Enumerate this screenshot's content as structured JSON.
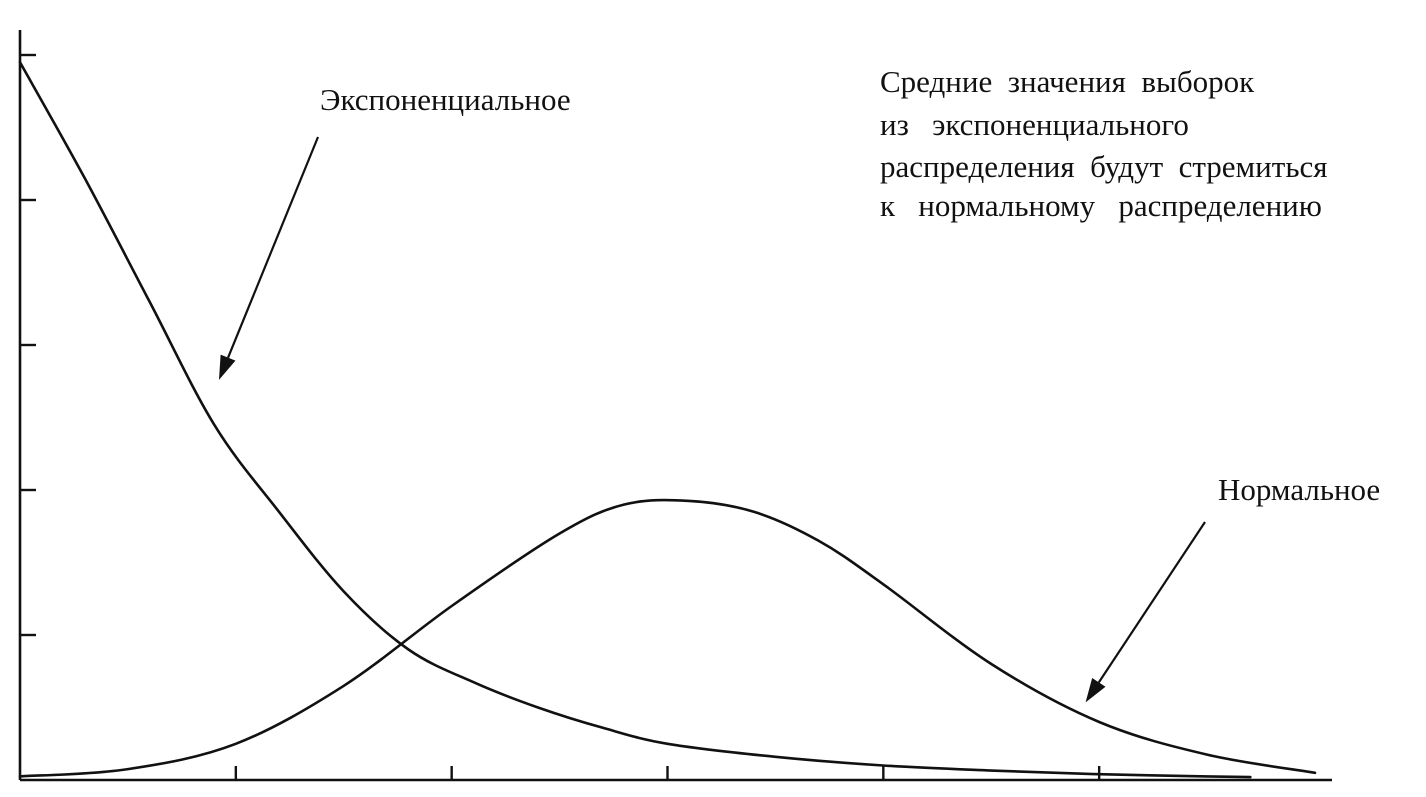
{
  "chart_data": {
    "type": "line",
    "title": "",
    "xlabel": "",
    "ylabel": "",
    "grid": false,
    "xlim": [
      0,
      6
    ],
    "ylim": [
      0,
      1
    ],
    "x_ticks": [
      1,
      2,
      3,
      4,
      5
    ],
    "y_ticks": [
      0.2,
      0.4,
      0.6,
      0.8,
      1.0
    ],
    "series": [
      {
        "name": "Экспоненциальное",
        "x": [
          0,
          0.3,
          0.6,
          0.9,
          1.2,
          1.5,
          1.8,
          2.1,
          2.4,
          2.7,
          3.0,
          3.5,
          4.0,
          4.5,
          5.0,
          5.5,
          5.7
        ],
        "y": [
          0.99,
          0.83,
          0.66,
          0.49,
          0.37,
          0.26,
          0.18,
          0.135,
          0.1,
          0.072,
          0.05,
          0.032,
          0.02,
          0.013,
          0.008,
          0.005,
          0.004
        ]
      },
      {
        "name": "Нормальное",
        "x": [
          0,
          0.5,
          1.0,
          1.5,
          2.0,
          2.5,
          2.8,
          3.1,
          3.4,
          3.7,
          4.0,
          4.5,
          5.0,
          5.5,
          6.0
        ],
        "y": [
          0.005,
          0.015,
          0.05,
          0.13,
          0.24,
          0.34,
          0.38,
          0.385,
          0.37,
          0.33,
          0.27,
          0.16,
          0.08,
          0.035,
          0.01
        ]
      }
    ],
    "annotations": [
      {
        "id": "exp",
        "text_lines": [
          "Экспоненциальное"
        ],
        "target_series": 0,
        "target_x": 0.82,
        "label_anchor": "upper-middle"
      },
      {
        "id": "norm",
        "text_lines": [
          "Нормальное"
        ],
        "target_series": 1,
        "target_x": 4.9,
        "label_anchor": "right-middle"
      },
      {
        "id": "note",
        "text_lines": [
          "Средние  значения  выборок",
          "из   экспоненциального",
          "распределения  будут  стремиться",
          "к   нормальному   распределению"
        ],
        "label_anchor": "top-right"
      }
    ]
  }
}
